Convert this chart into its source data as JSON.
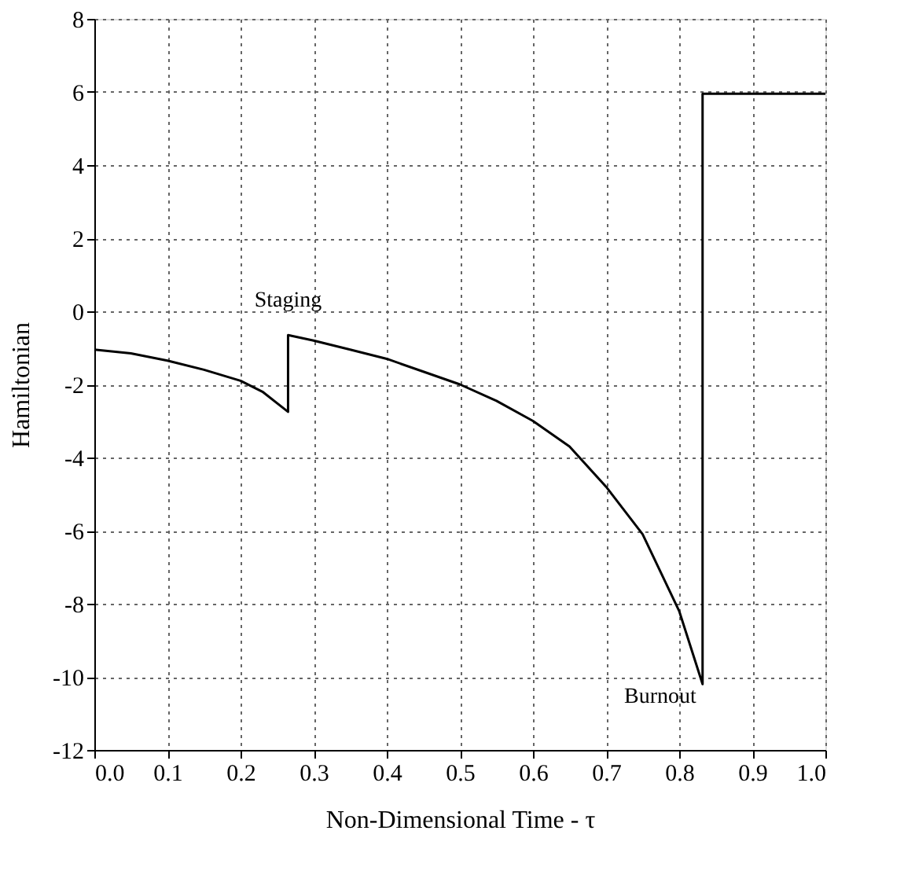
{
  "chart_data": {
    "type": "line",
    "xlabel": "Non-Dimensional Time - τ",
    "ylabel": "Hamiltonian",
    "xlim": [
      0,
      1
    ],
    "ylim": [
      -12,
      8
    ],
    "xticks": [
      {
        "value": 0,
        "label": "0.0"
      },
      0.1,
      0.2,
      0.3,
      0.4,
      0.5,
      0.6,
      0.7,
      0.8,
      0.9,
      {
        "value": 1,
        "label": "1.0"
      }
    ],
    "yticks": [
      -12,
      -10,
      -8,
      -6,
      -4,
      -2,
      0,
      2,
      4,
      6,
      8
    ],
    "grid": true,
    "line_style": "solid",
    "marker": "none",
    "series": [
      {
        "color": "#000000",
        "x": [
          0,
          0.05,
          0.1,
          0.15,
          0.2,
          0.23,
          0.265,
          0.265,
          0.3,
          0.35,
          0.4,
          0.45,
          0.5,
          0.55,
          0.6,
          0.65,
          0.7,
          0.75,
          0.8,
          0.832,
          0.832,
          0.9,
          1.0
        ],
        "values": [
          -1.05,
          -1.15,
          -1.35,
          -1.6,
          -1.9,
          -2.2,
          -2.75,
          -0.65,
          -0.8,
          -1.05,
          -1.3,
          -1.65,
          -2.0,
          -2.45,
          -3.0,
          -3.7,
          -4.8,
          -6.1,
          -8.2,
          -10.2,
          5.95,
          5.95,
          5.95
        ]
      }
    ],
    "annotations": [
      {
        "text": "Staging",
        "x": 0.265,
        "y": -0.65
      },
      {
        "text": "Burnout",
        "x": 0.832,
        "y": -10.2
      }
    ]
  }
}
